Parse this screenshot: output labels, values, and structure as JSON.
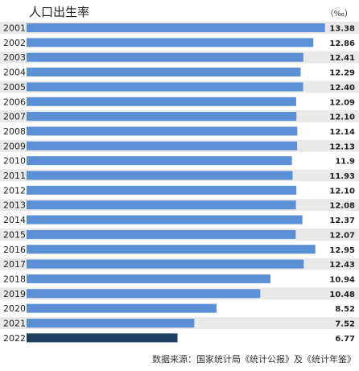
{
  "chart_data": {
    "type": "bar",
    "orientation": "horizontal",
    "title": "人口出生率",
    "unit": "（‰）",
    "source": "数据来源：国家统计局《统计公报》及《统计年鉴》",
    "categories": [
      "2001",
      "2002",
      "2003",
      "2004",
      "2005",
      "2006",
      "2007",
      "2008",
      "2009",
      "2010",
      "2011",
      "2012",
      "2013",
      "2014",
      "2015",
      "2016",
      "2017",
      "2018",
      "2019",
      "2020",
      "2021",
      "2022"
    ],
    "values": [
      13.38,
      12.86,
      12.41,
      12.29,
      12.4,
      12.09,
      12.1,
      12.14,
      12.13,
      11.9,
      11.93,
      12.1,
      12.08,
      12.37,
      12.07,
      12.95,
      12.43,
      10.94,
      10.48,
      8.52,
      7.52,
      6.77
    ],
    "value_labels": [
      "13.38",
      "12.86",
      "12.41",
      "12.29",
      "12.40",
      "12.09",
      "12.10",
      "12.14",
      "12.13",
      "11.9",
      "11.93",
      "12.10",
      "12.08",
      "12.37",
      "12.07",
      "12.95",
      "12.43",
      "10.94",
      "10.48",
      "8.52",
      "7.52",
      "6.77"
    ],
    "xlim": [
      0,
      13.5
    ],
    "grid": false,
    "legend": "none",
    "colors": {
      "bar": "#5b8fd6",
      "highlight_bar": "#1f3f60",
      "row_band": "#e9e9e9"
    },
    "highlight_category": "2022"
  }
}
